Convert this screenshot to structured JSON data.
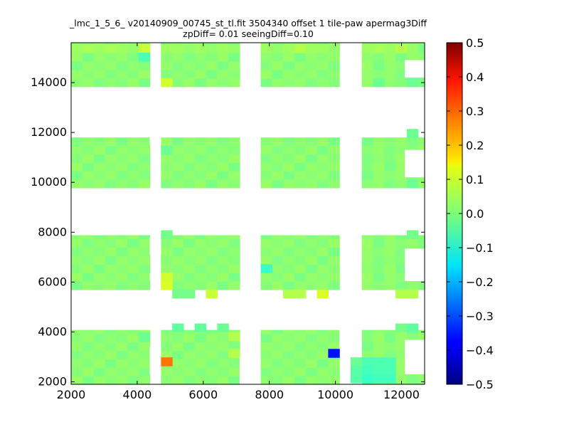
{
  "chart_data": {
    "type": "heatmap",
    "title": "_lmc_1_5_6_ v20140909_00745_st_tl.fit 3504340 offset 1 tile-paw apermag3Diff",
    "subtitle": "zpDiff= 0.01 seeingDiff=0.10",
    "xlabel": "",
    "ylabel": "",
    "xlim": [
      2000,
      12700
    ],
    "ylim": [
      1900,
      15600
    ],
    "x_ticks": [
      "2000",
      "4000",
      "6000",
      "8000",
      "10000",
      "12000"
    ],
    "y_ticks": [
      "2000",
      "4000",
      "6000",
      "8000",
      "10000",
      "12000",
      "14000"
    ],
    "colorbar": {
      "min": -0.5,
      "max": 0.5,
      "colormap": "jet",
      "ticks": [
        "0.5",
        "0.4",
        "0.3",
        "0.2",
        "0.1",
        "0.0",
        "−0.1",
        "−0.2",
        "−0.3",
        "−0.4",
        "−0.5"
      ]
    },
    "grid": false,
    "cell_size": [
      340,
      340
    ],
    "cells": [
      [
        2000,
        15200,
        0.03
      ],
      [
        2340,
        15200,
        0.04
      ],
      [
        2680,
        15200,
        0.03
      ],
      [
        3020,
        15200,
        0.04
      ],
      [
        3360,
        15200,
        0.03
      ],
      [
        3700,
        15200,
        0.02
      ],
      [
        4040,
        15200,
        0.07
      ],
      [
        4720,
        15200,
        0.03
      ],
      [
        5060,
        15200,
        0.03
      ],
      [
        5400,
        15200,
        0.02
      ],
      [
        5740,
        15200,
        0.03
      ],
      [
        6080,
        15200,
        0.02
      ],
      [
        6420,
        15200,
        0.03
      ],
      [
        6760,
        15200,
        0.02
      ],
      [
        7740,
        15200,
        0.03
      ],
      [
        8080,
        15200,
        0.02
      ],
      [
        8420,
        15200,
        0.03
      ],
      [
        8760,
        15200,
        0.05
      ],
      [
        9100,
        15200,
        0.03
      ],
      [
        9440,
        15200,
        0.03
      ],
      [
        9780,
        15200,
        0.02
      ],
      [
        10800,
        15200,
        0.03
      ],
      [
        11140,
        15200,
        0.04
      ],
      [
        11480,
        15200,
        0.03
      ],
      [
        11820,
        15200,
        0.05
      ],
      [
        4040,
        14860,
        -0.05
      ],
      [
        11140,
        13840,
        -0.02
      ],
      [
        12160,
        13840,
        -0.02
      ],
      [
        4720,
        13840,
        0.08
      ],
      [
        12160,
        11800,
        -0.02
      ],
      [
        4720,
        11120,
        -0.02
      ],
      [
        12160,
        9780,
        -0.02
      ],
      [
        4720,
        7740,
        -0.01
      ],
      [
        12160,
        7740,
        -0.01
      ],
      [
        4720,
        6720,
        0.01
      ],
      [
        7740,
        6380,
        -0.07
      ],
      [
        4720,
        6040,
        0.08
      ],
      [
        4720,
        5700,
        0.09
      ],
      [
        5060,
        5360,
        -0.01
      ],
      [
        5400,
        5360,
        -0.01
      ],
      [
        6080,
        5360,
        0.07
      ],
      [
        8420,
        5360,
        0.05
      ],
      [
        8760,
        5360,
        0.05
      ],
      [
        9440,
        5360,
        0.09
      ],
      [
        11820,
        5360,
        0.05
      ],
      [
        12160,
        5360,
        0.05
      ],
      [
        11820,
        4000,
        -0.01
      ],
      [
        12160,
        4000,
        -0.03
      ],
      [
        5060,
        4000,
        -0.03
      ],
      [
        5740,
        4000,
        -0.03
      ],
      [
        6420,
        4000,
        -0.02
      ],
      [
        4040,
        3660,
        -0.02
      ],
      [
        6760,
        3660,
        0.05
      ],
      [
        6760,
        2980,
        0.05
      ],
      [
        9780,
        2980,
        -0.36
      ],
      [
        4720,
        2640,
        0.26
      ],
      [
        10460,
        2640,
        -0.02
      ],
      [
        10800,
        2640,
        -0.05
      ],
      [
        11140,
        2640,
        -0.05
      ],
      [
        11480,
        2640,
        -0.05
      ],
      [
        10460,
        2300,
        -0.04
      ],
      [
        10800,
        2300,
        -0.06
      ],
      [
        11140,
        2300,
        -0.05
      ],
      [
        11480,
        2300,
        -0.05
      ],
      [
        10460,
        1960,
        -0.04
      ],
      [
        10800,
        1960,
        -0.07
      ],
      [
        11140,
        1960,
        -0.06
      ],
      [
        11480,
        1960,
        -0.06
      ]
    ]
  }
}
